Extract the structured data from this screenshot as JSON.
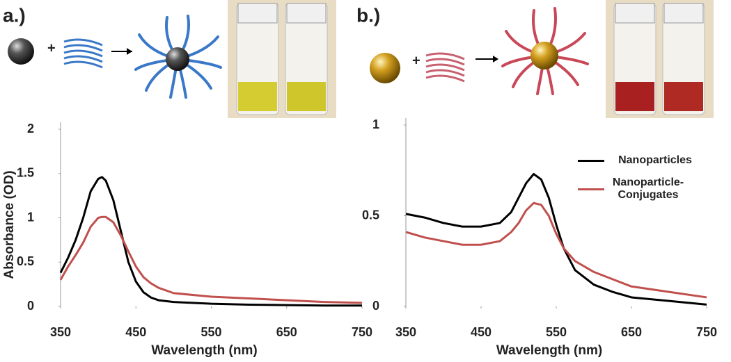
{
  "chart_data": [
    {
      "type": "line",
      "panel_label": "a.)",
      "ylabel": "Absorbance (OD)",
      "xlabel": "Wavelength (nm)",
      "xlim": [
        350,
        750
      ],
      "xticks": [
        350,
        450,
        550,
        650,
        750
      ],
      "ylim": [
        0,
        2
      ],
      "yticks": [
        0,
        0.5,
        1,
        1.5,
        2
      ],
      "x": [
        350,
        360,
        370,
        380,
        390,
        400,
        405,
        410,
        420,
        430,
        440,
        450,
        460,
        470,
        480,
        500,
        550,
        600,
        650,
        700,
        750
      ],
      "series": [
        {
          "color": "#000000",
          "values": [
            0.38,
            0.55,
            0.75,
            1.0,
            1.3,
            1.44,
            1.46,
            1.42,
            1.2,
            0.85,
            0.5,
            0.28,
            0.16,
            0.1,
            0.07,
            0.05,
            0.03,
            0.02,
            0.015,
            0.01,
            0.01
          ]
        },
        {
          "color": "#c0504d",
          "values": [
            0.3,
            0.45,
            0.58,
            0.72,
            0.9,
            1.0,
            1.01,
            1.01,
            0.95,
            0.8,
            0.62,
            0.45,
            0.33,
            0.26,
            0.21,
            0.15,
            0.11,
            0.09,
            0.07,
            0.05,
            0.04
          ]
        }
      ]
    },
    {
      "type": "line",
      "panel_label": "b.)",
      "xlabel": "Wavelength (nm)",
      "xlim": [
        350,
        750
      ],
      "xticks": [
        350,
        450,
        550,
        650,
        750
      ],
      "ylim": [
        0,
        1
      ],
      "yticks": [
        0,
        0.5,
        1
      ],
      "x": [
        350,
        375,
        400,
        425,
        450,
        475,
        490,
        500,
        510,
        520,
        530,
        540,
        550,
        560,
        575,
        600,
        625,
        650,
        700,
        750
      ],
      "series": [
        {
          "name": "Nanoparticles",
          "color": "#000000",
          "values": [
            0.51,
            0.49,
            0.46,
            0.44,
            0.44,
            0.46,
            0.52,
            0.6,
            0.68,
            0.73,
            0.7,
            0.6,
            0.45,
            0.32,
            0.2,
            0.12,
            0.08,
            0.05,
            0.03,
            0.01
          ]
        },
        {
          "name": "Nanoparticle-Conjugates",
          "color": "#c0504d",
          "values": [
            0.41,
            0.38,
            0.36,
            0.34,
            0.34,
            0.36,
            0.41,
            0.46,
            0.53,
            0.57,
            0.56,
            0.5,
            0.4,
            0.32,
            0.25,
            0.19,
            0.15,
            0.11,
            0.08,
            0.05
          ]
        }
      ]
    }
  ]
}
